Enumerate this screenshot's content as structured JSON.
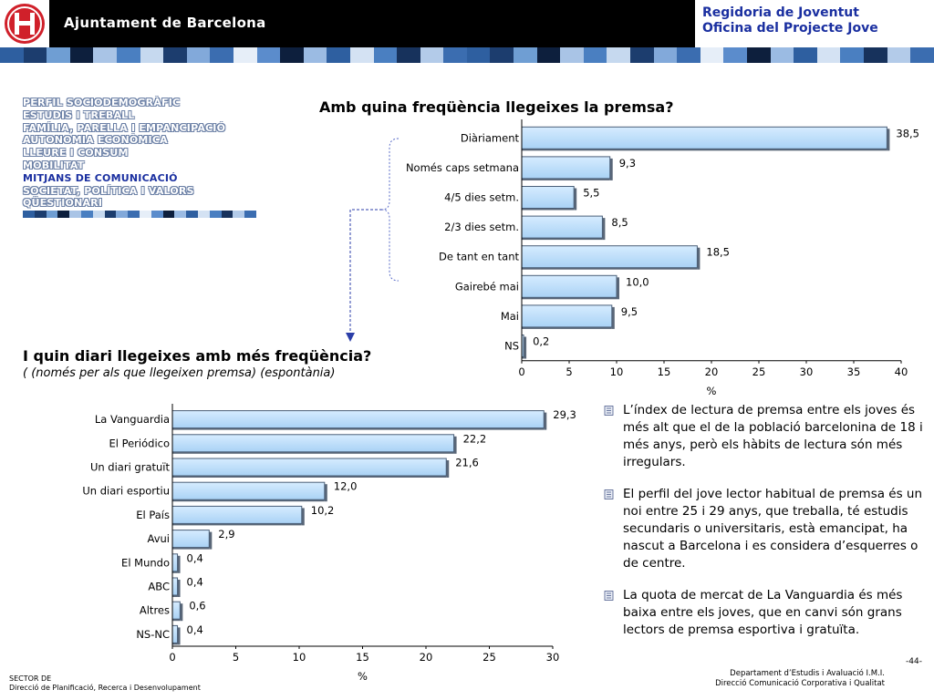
{
  "header": {
    "org_name": "Ajuntament de Barcelona",
    "dept_line1": "Regidoria de Joventut",
    "dept_line2": "Oficina del Projecte Jove"
  },
  "nav": {
    "items": [
      {
        "label": "PERFIL SOCIODEMOGRÀFIC",
        "active": false
      },
      {
        "label": "ESTUDIS I TREBALL",
        "active": false
      },
      {
        "label": "FAMÍLIA, PARELLA I EMPANCIPACIÓ",
        "active": false
      },
      {
        "label": "AUTONOMIA ECONÒMICA",
        "active": false
      },
      {
        "label": "LLEURE I CONSUM",
        "active": false
      },
      {
        "label": "MOBILITAT",
        "active": false
      },
      {
        "label": "MITJANS DE COMUNICACIÓ",
        "active": true
      },
      {
        "label": "SOCIETAT, POLÍTICA I VALORS",
        "active": false
      },
      {
        "label": "QÜESTIONARI",
        "active": false
      }
    ]
  },
  "colors": {
    "accent": "#1a2fa0",
    "bar_light": "#d6ecff",
    "bar_dark": "#a9d2f5",
    "stripe": [
      "#2e5fa0",
      "#1c3d6e",
      "#6f9ed3",
      "#0d1f3d",
      "#a9c4e6",
      "#4a7fc1",
      "#c6d9ef",
      "#1c3d6e",
      "#82a9da",
      "#3b6db0",
      "#e6eef8",
      "#5b8ccc",
      "#0d1f3d",
      "#9bbbe3",
      "#2e5fa0",
      "#d4e2f3",
      "#4a7fc1",
      "#17325c",
      "#b3cbe9",
      "#3b6db0"
    ]
  },
  "chart_data": [
    {
      "type": "bar",
      "orientation": "horizontal",
      "title": "Amb quina freqüència llegeixes la premsa?",
      "categories": [
        "Diàriament",
        "Només caps setmana",
        "4/5 dies setm.",
        "2/3 dies setm.",
        "De tant en tant",
        "Gairebé mai",
        "Mai",
        "NS"
      ],
      "values": [
        38.5,
        9.3,
        5.5,
        8.5,
        18.5,
        10.0,
        9.5,
        0.2
      ],
      "labels": [
        "38,5",
        "9,3",
        "5,5",
        "8,5",
        "18,5",
        "10,0",
        "9,5",
        "0,2"
      ],
      "xlabel": "%",
      "xlim": [
        0,
        40
      ],
      "ticks": [
        "0",
        "5",
        "10",
        "15",
        "20",
        "25",
        "30",
        "35",
        "40"
      ],
      "grid": false,
      "legend": "none"
    },
    {
      "type": "bar",
      "orientation": "horizontal",
      "title": "I quin diari llegeixes amb més freqüència?",
      "subtitle": "( (només per als que llegeixen premsa) (espontània)",
      "categories": [
        "La Vanguardia",
        "El Periódico",
        "Un diari gratuït",
        "Un diari esportiu",
        "El País",
        "Avui",
        "El Mundo",
        "ABC",
        "Altres",
        "NS-NC"
      ],
      "values": [
        29.3,
        22.2,
        21.6,
        12.0,
        10.2,
        2.9,
        0.4,
        0.4,
        0.6,
        0.4
      ],
      "labels": [
        "29,3",
        "22,2",
        "21,6",
        "12,0",
        "10,2",
        "2,9",
        "0,4",
        "0,4",
        "0,6",
        "0,4"
      ],
      "xlabel": "%",
      "xlim": [
        0,
        30
      ],
      "ticks": [
        "0",
        "5",
        "10",
        "15",
        "20",
        "25",
        "30"
      ],
      "grid": false,
      "legend": "none"
    }
  ],
  "bullets": [
    "L’índex de lectura de premsa entre els joves és més alt que el de la població barcelonina de 18 i més anys, però els hàbits de lectura són més irregulars.",
    "El perfil del jove lector habitual de premsa és un noi entre 25 i 29 anys, que treballa, té estudis secundaris o universitaris, està emancipat, ha nascut a Barcelona i es considera d’esquerres o de centre.",
    "La quota de mercat de La Vanguardia és més baixa entre els joves, que en canvi són grans lectors de premsa esportiva i gratuïta."
  ],
  "footer": {
    "left_line1": "SECTOR DE",
    "left_line2": "Direcció de Planificació, Recerca i Desenvolupament",
    "page_number": "-44-",
    "right_line1": "Departament d’Estudis i Avaluació I.M.I.",
    "right_line2": "Direcció Comunicació Corporativa i Qualitat"
  }
}
